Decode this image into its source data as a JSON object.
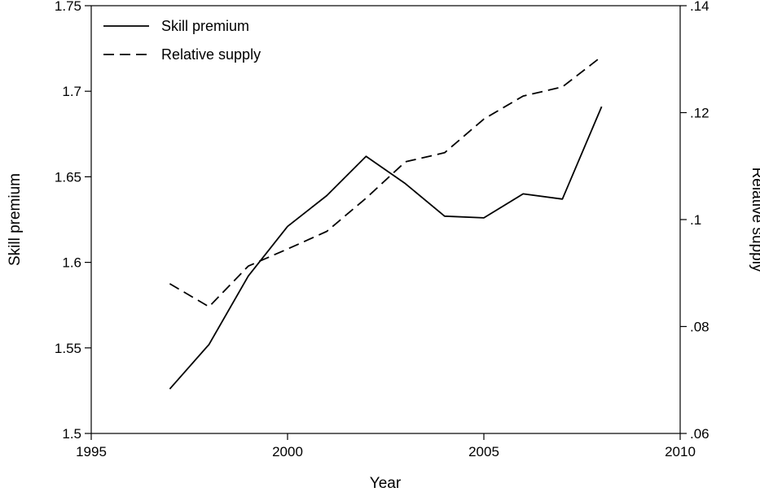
{
  "chart_data": {
    "type": "line",
    "xlabel": "Year",
    "ylabel": "Skill premium",
    "y2label": "Relative supply",
    "xlim": [
      1995,
      2010
    ],
    "ylim": [
      1.5,
      1.75
    ],
    "y2lim": [
      0.06,
      0.14
    ],
    "x_ticks": [
      1995,
      2000,
      2005,
      2010
    ],
    "x_tick_labels": [
      "1995",
      "2000",
      "2005",
      "2010"
    ],
    "y_ticks": [
      1.5,
      1.55,
      1.6,
      1.65,
      1.7,
      1.75
    ],
    "y_tick_labels": [
      "1.5",
      "1.55",
      "1.6",
      "1.65",
      "1.7",
      "1.75"
    ],
    "y2_ticks": [
      0.06,
      0.08,
      0.1,
      0.12,
      0.14
    ],
    "y2_tick_labels": [
      ".06",
      ".08",
      ".1",
      ".12",
      ".14"
    ],
    "grid": false,
    "legend_position": "top-left",
    "x": [
      1997,
      1998,
      1999,
      2000,
      2001,
      2002,
      2003,
      2004,
      2005,
      2006,
      2007,
      2008
    ],
    "series": [
      {
        "name": "Skill premium",
        "axis": "left",
        "style": "solid",
        "values": [
          1.526,
          1.552,
          1.592,
          1.621,
          1.639,
          1.662,
          1.646,
          1.627,
          1.626,
          1.64,
          1.637,
          1.691
        ]
      },
      {
        "name": "Relative supply",
        "axis": "right",
        "style": "dashed",
        "values": [
          0.088,
          0.0837,
          0.0913,
          0.0945,
          0.0978,
          0.104,
          0.1108,
          0.1125,
          0.1188,
          0.1231,
          0.1248,
          0.1305
        ]
      }
    ],
    "colors": {
      "line": "#000000",
      "background": "#ffffff"
    }
  }
}
